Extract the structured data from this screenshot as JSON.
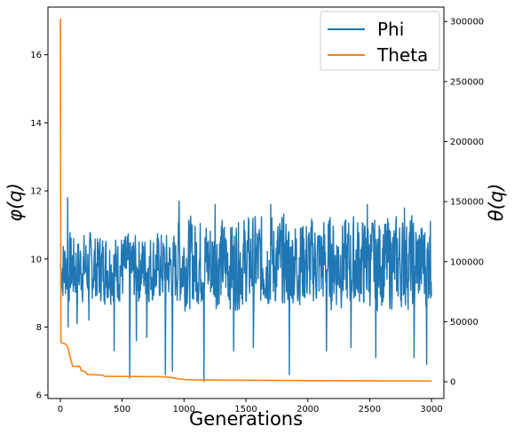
{
  "chart_data": {
    "type": "line",
    "title": "",
    "xlabel": "Generations",
    "ylabel_left": "φ(q)",
    "ylabel_right": "θ(q)",
    "xlim": [
      -100,
      3100
    ],
    "ylim_left": [
      5.9,
      17.4
    ],
    "ylim_right": [
      -14000,
      312000
    ],
    "x_ticks": [
      0,
      500,
      1000,
      1500,
      2000,
      2500,
      3000
    ],
    "y_left_ticks": [
      6,
      8,
      10,
      12,
      14,
      16
    ],
    "y_right_ticks": [
      0,
      50000,
      100000,
      150000,
      200000,
      250000,
      300000
    ],
    "grid": false,
    "legend_position": "top-right",
    "colors": {
      "phi": "#1f77b4",
      "theta": "#ff7f0e"
    },
    "series": [
      {
        "name": "Phi",
        "axis": "left",
        "color": "#1f77b4",
        "generations": 3000,
        "noise_seed": 7,
        "baseline_segments": [
          {
            "x_from": 0,
            "x_to": 950,
            "low": 8.6,
            "high": 10.9
          },
          {
            "x_from": 950,
            "x_to": 3000,
            "low": 8.4,
            "high": 11.4
          }
        ],
        "spikes": [
          {
            "x": 15,
            "y": 9.5
          },
          {
            "x": 60,
            "y": 11.8
          },
          {
            "x": 62,
            "y": 8.0
          },
          {
            "x": 135,
            "y": 8.1
          },
          {
            "x": 230,
            "y": 8.2
          },
          {
            "x": 435,
            "y": 7.3
          },
          {
            "x": 560,
            "y": 6.5
          },
          {
            "x": 615,
            "y": 7.6
          },
          {
            "x": 700,
            "y": 7.7
          },
          {
            "x": 850,
            "y": 6.6
          },
          {
            "x": 905,
            "y": 6.7
          },
          {
            "x": 960,
            "y": 11.7
          },
          {
            "x": 1160,
            "y": 6.4
          },
          {
            "x": 1250,
            "y": 11.6
          },
          {
            "x": 1400,
            "y": 7.3
          },
          {
            "x": 1560,
            "y": 7.4
          },
          {
            "x": 1700,
            "y": 11.6
          },
          {
            "x": 1850,
            "y": 6.6
          },
          {
            "x": 2150,
            "y": 7.3
          },
          {
            "x": 2350,
            "y": 7.4
          },
          {
            "x": 2480,
            "y": 11.6
          },
          {
            "x": 2550,
            "y": 7.1
          },
          {
            "x": 2780,
            "y": 11.5
          },
          {
            "x": 2860,
            "y": 7.1
          },
          {
            "x": 2960,
            "y": 6.9
          },
          {
            "x": 2990,
            "y": 11.1
          }
        ]
      },
      {
        "name": "Theta",
        "axis": "right",
        "color": "#ff7f0e",
        "points": [
          [
            0,
            302000
          ],
          [
            1,
            302000
          ],
          [
            3,
            140000
          ],
          [
            5,
            33000
          ],
          [
            20,
            32000
          ],
          [
            40,
            31500
          ],
          [
            60,
            29000
          ],
          [
            80,
            20000
          ],
          [
            100,
            13000
          ],
          [
            160,
            12500
          ],
          [
            170,
            9000
          ],
          [
            200,
            8500
          ],
          [
            220,
            6000
          ],
          [
            340,
            5500
          ],
          [
            360,
            4500
          ],
          [
            800,
            4200
          ],
          [
            900,
            3500
          ],
          [
            950,
            2500
          ],
          [
            1000,
            1800
          ],
          [
            1100,
            1500
          ],
          [
            1500,
            1200
          ],
          [
            2000,
            900
          ],
          [
            2500,
            700
          ],
          [
            3000,
            600
          ]
        ]
      }
    ]
  }
}
